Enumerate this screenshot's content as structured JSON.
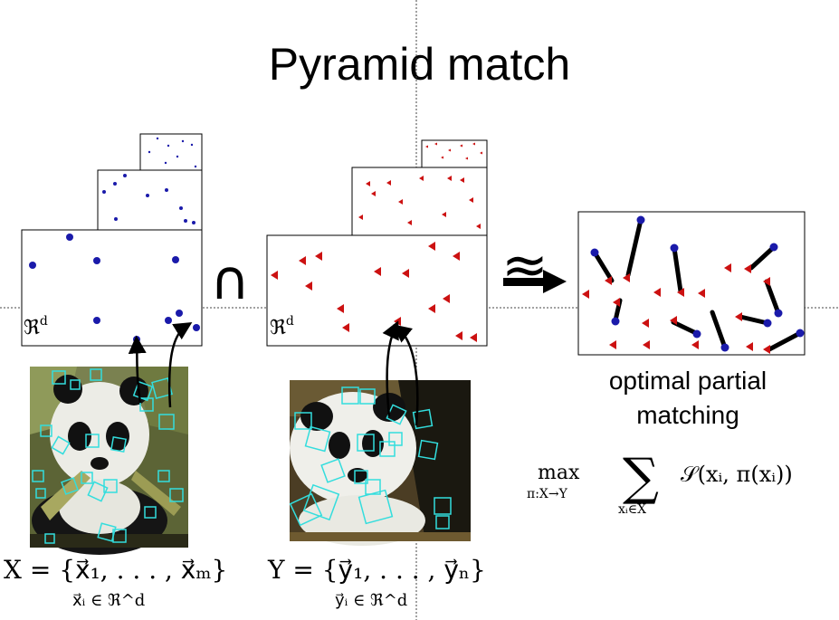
{
  "slide": {
    "title": "Pyramid match"
  },
  "caption": {
    "line1": "optimal partial",
    "line2": "matching"
  },
  "symbols": {
    "space_label": "ℜ^d",
    "intersection": "∩",
    "approx": "≊"
  },
  "formulas": {
    "set_x": "X = {x⃗₁, . . . , x⃗ₘ}",
    "set_x_member": "x⃗ᵢ ∈ ℜ^d",
    "set_y": "Y = {y⃗₁, . . . , y⃗ₙ}",
    "set_y_member": "y⃗ᵢ ∈ ℜ^d",
    "objective_max": "max",
    "objective_max_sub": "π:X→Y",
    "objective_sum": "∑",
    "objective_sum_sub": "xᵢ∈X",
    "objective_body": "𝒮(xᵢ, π(xᵢ))"
  },
  "colors": {
    "x_points": "#1a1aaa",
    "y_points": "#cc1111",
    "feature_boxes": "#33dddd",
    "match_lines": "#000000"
  }
}
